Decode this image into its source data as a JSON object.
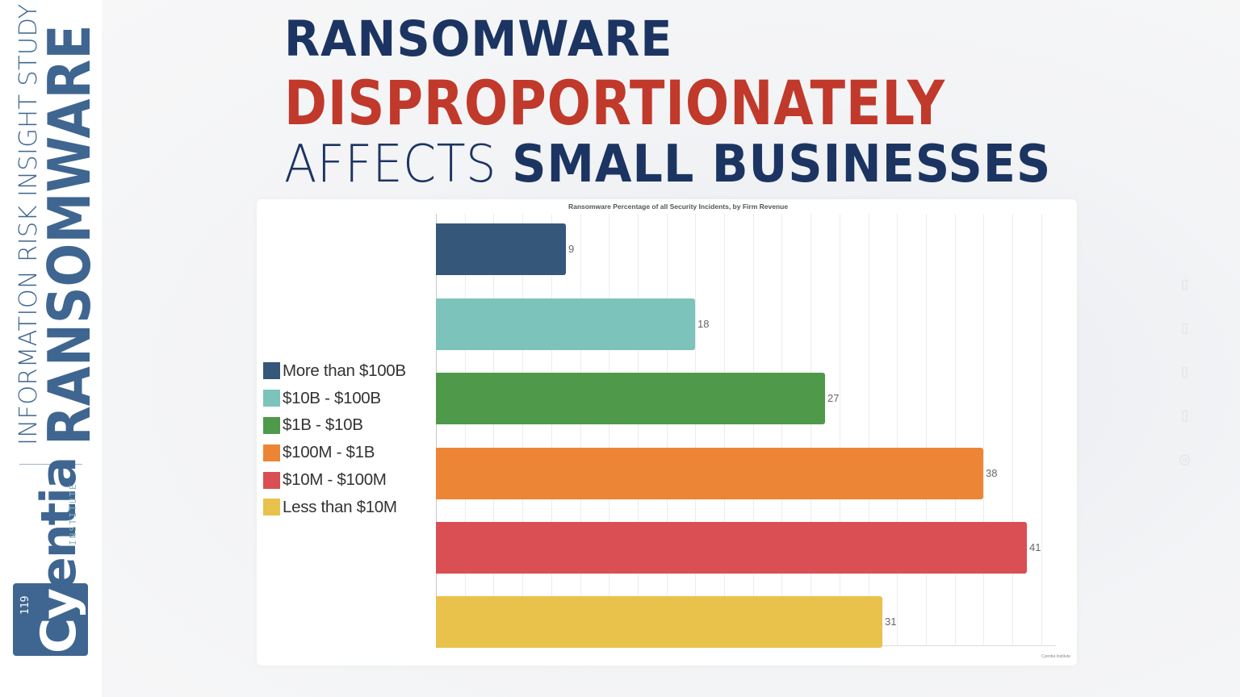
{
  "brand": {
    "study_label": "INFORMATION RISK INSIGHT STUDY",
    "study_title": "RANSOMWARE",
    "logo_number": "119",
    "logo_word_main": "Cy",
    "logo_word_tail": "entia",
    "logo_institute": "INSTITUTE",
    "color": "#3f6690"
  },
  "headline": {
    "line1": "RANSOMWARE",
    "line2": "DISPROPORTIONATELY",
    "line3_light": "AFFECTS ",
    "line3_bold": "SMALL BUSINESSES",
    "color_primary": "#1c3461",
    "color_accent": "#c0392b"
  },
  "chart": {
    "title": "Ransomware Percentage of all Security Incidents, by Firm Revenue",
    "source_note": "Cyentia Institute",
    "legend": [
      {
        "label": "More than $100B",
        "color": "#34577a"
      },
      {
        "label": "$10B - $100B",
        "color": "#7cc3bc"
      },
      {
        "label": "$1B - $10B",
        "color": "#4f9a4a"
      },
      {
        "label": "$100M - $1B",
        "color": "#ec8535"
      },
      {
        "label": "$10M - $100M",
        "color": "#da4f53"
      },
      {
        "label": "Less than $10M",
        "color": "#e8c24a"
      }
    ],
    "bars": [
      {
        "label": "9",
        "value": 9
      },
      {
        "label": "18",
        "value": 18
      },
      {
        "label": "27",
        "value": 27
      },
      {
        "label": "38",
        "value": 38
      },
      {
        "label": "41",
        "value": 41
      },
      {
        "label": "31",
        "value": 31
      }
    ]
  },
  "chart_data": {
    "type": "bar",
    "orientation": "horizontal",
    "title": "Ransomware Percentage of all Security Incidents, by Firm Revenue",
    "categories": [
      "More than $100B",
      "$10B - $100B",
      "$1B - $10B",
      "$100M - $1B",
      "$10M - $100M",
      "Less than $10M"
    ],
    "values": [
      9,
      18,
      27,
      38,
      41,
      31
    ],
    "colors": [
      "#34577a",
      "#7cc3bc",
      "#4f9a4a",
      "#ec8535",
      "#da4f53",
      "#e8c24a"
    ],
    "xlabel": "",
    "ylabel": "",
    "xlim": [
      0,
      43
    ],
    "grid": true,
    "data_labels": true,
    "legend_position": "left"
  }
}
